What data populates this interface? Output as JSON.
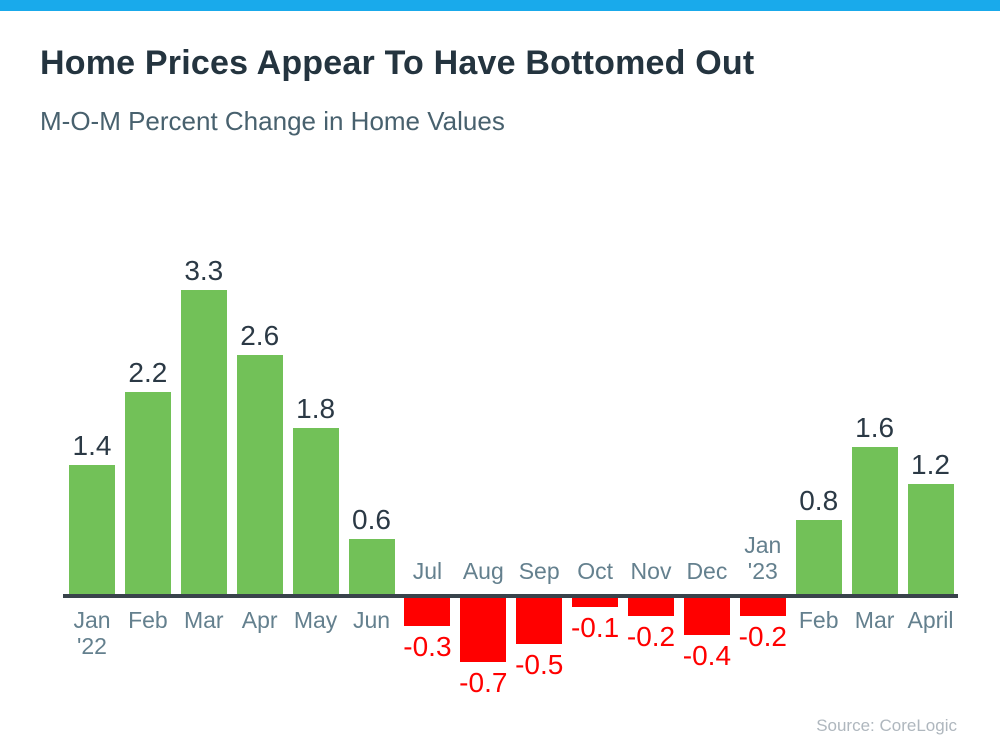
{
  "header": {
    "title": "Home Prices Appear To Have Bottomed Out",
    "subtitle": "M-O-M Percent Change in Home Values",
    "accent_bar_color": "#19AAEB"
  },
  "footer": {
    "source": "Source: CoreLogic"
  },
  "chart_data": {
    "type": "bar",
    "title": "Home Prices Appear To Have Bottomed Out",
    "subtitle": "M-O-M Percent Change in Home Values",
    "source": "Source: CoreLogic",
    "unit": "percent",
    "categories": [
      "Jan '22",
      "Feb",
      "Mar",
      "Apr",
      "May",
      "Jun",
      "Jul",
      "Aug",
      "Sep",
      "Oct",
      "Nov",
      "Dec",
      "Jan '23",
      "Feb",
      "Mar",
      "April"
    ],
    "category_lines": [
      [
        "Jan",
        "'22"
      ],
      [
        "Feb"
      ],
      [
        "Mar"
      ],
      [
        "Apr"
      ],
      [
        "May"
      ],
      [
        "Jun"
      ],
      [
        "Jul"
      ],
      [
        "Aug"
      ],
      [
        "Sep"
      ],
      [
        "Oct"
      ],
      [
        "Nov"
      ],
      [
        "Dec"
      ],
      [
        "Jan",
        "'23"
      ],
      [
        "Feb"
      ],
      [
        "Mar"
      ],
      [
        "April"
      ]
    ],
    "values": [
      1.4,
      2.2,
      3.3,
      2.6,
      1.8,
      0.6,
      -0.3,
      -0.7,
      -0.5,
      -0.1,
      -0.2,
      -0.4,
      -0.2,
      0.8,
      1.6,
      1.2
    ],
    "value_labels": [
      "1.4",
      "2.2",
      "3.3",
      "2.6",
      "1.8",
      "0.6",
      "-0.3",
      "-0.7",
      "-0.5",
      "-0.1",
      "-0.2",
      "-0.4",
      "-0.2",
      "0.8",
      "1.6",
      "1.2"
    ],
    "ylim": [
      -1,
      3.5
    ],
    "grid": false,
    "legend": false,
    "value_label_position": "outside-end",
    "tick_label_position": "opposite-side-of-bar",
    "colors": {
      "positive_bar": "#72C158",
      "negative_bar": "#FF0000",
      "positive_value_label": "#2B3945",
      "negative_value_label": "#FF0000",
      "tick_label": "#64808E",
      "axis_line": "#39434B"
    }
  }
}
